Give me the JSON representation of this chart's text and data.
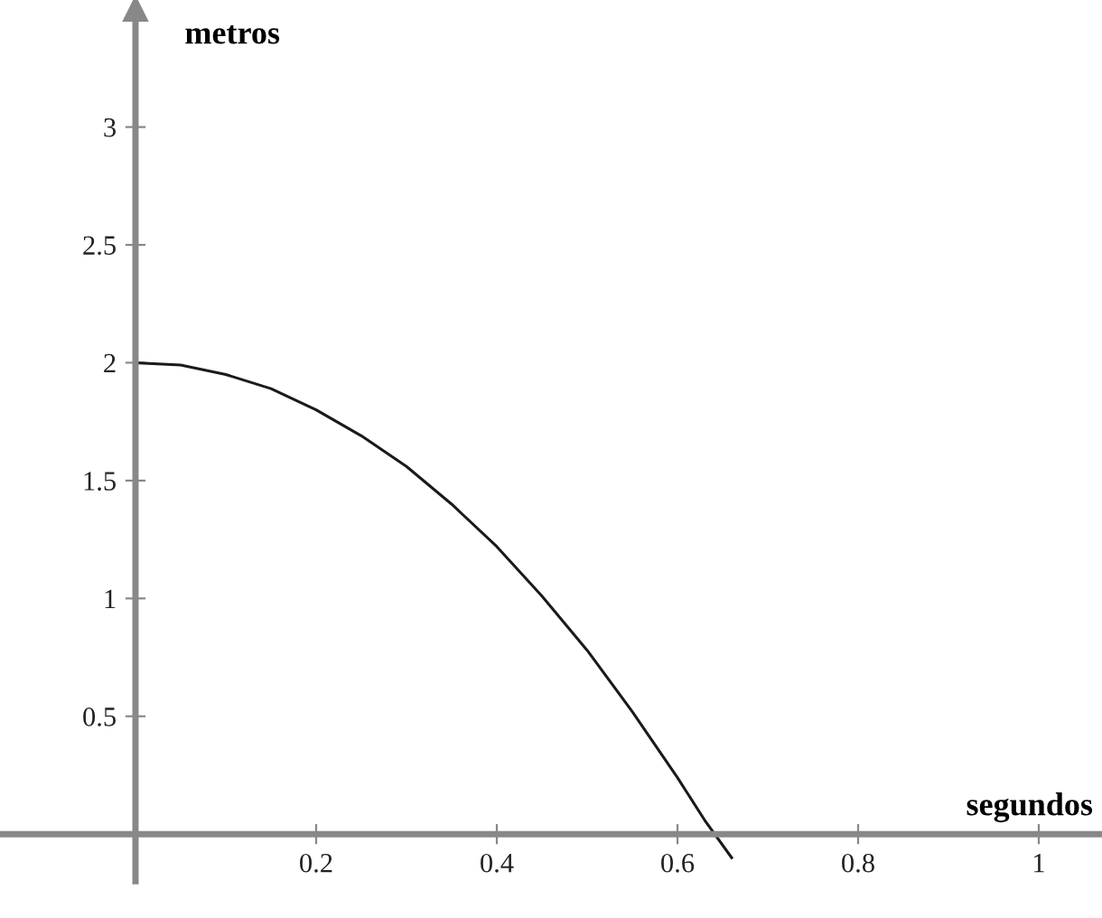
{
  "chart_data": {
    "type": "line",
    "xlabel": "segundos",
    "ylabel": "metros",
    "x": [
      0,
      0.05,
      0.1,
      0.15,
      0.2,
      0.25,
      0.3,
      0.35,
      0.4,
      0.45,
      0.5,
      0.55,
      0.6,
      0.63,
      0.66
    ],
    "values": [
      2,
      1.99,
      1.95,
      1.89,
      1.8,
      1.69,
      1.56,
      1.4,
      1.22,
      1.01,
      0.78,
      0.52,
      0.24,
      0.06,
      -0.1
    ],
    "color": "#1a1a1a",
    "xlim": [
      -0.15,
      1.07
    ],
    "ylim": [
      -0.2,
      3.5
    ],
    "xticks": [
      0.2,
      0.4,
      0.6,
      0.8,
      1
    ],
    "yticks": [
      0.5,
      1,
      1.5,
      2,
      2.5,
      3
    ]
  }
}
